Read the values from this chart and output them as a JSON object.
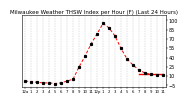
{
  "title": "Milwaukee Weather THSW Index per Hour (F) (Last 24 Hours)",
  "hours": [
    0,
    1,
    2,
    3,
    4,
    5,
    6,
    7,
    8,
    9,
    10,
    11,
    12,
    13,
    14,
    15,
    16,
    17,
    18,
    19,
    20,
    21,
    22,
    23
  ],
  "values": [
    2,
    1,
    0,
    -1,
    -1,
    -2,
    -1,
    2,
    5,
    25,
    42,
    62,
    78,
    95,
    88,
    75,
    55,
    38,
    28,
    20,
    15,
    13,
    12,
    12
  ],
  "line_color": "#ff0000",
  "marker_color": "#000000",
  "background_color": "#ffffff",
  "grid_color": "#aaaaaa",
  "ylim": [
    -8,
    108
  ],
  "xlim": [
    -0.5,
    23.5
  ],
  "yticks": [
    -5,
    10,
    25,
    40,
    55,
    70,
    85,
    100
  ],
  "xtick_positions": [
    0,
    1,
    2,
    3,
    4,
    5,
    6,
    7,
    8,
    9,
    10,
    11,
    12,
    13,
    14,
    15,
    16,
    17,
    18,
    19,
    20,
    21,
    22,
    23
  ],
  "xtick_labels": [
    "12a",
    "1",
    "2",
    "3",
    "4",
    "5",
    "6",
    "7",
    "8",
    "9",
    "10",
    "11",
    "12p",
    "1",
    "2",
    "3",
    "4",
    "5",
    "6",
    "7",
    "8",
    "9",
    "10",
    "11"
  ],
  "title_fontsize": 4.0,
  "ytick_fontsize": 3.5,
  "xtick_fontsize": 2.8,
  "line_width": 0.7,
  "marker_size": 1.3,
  "flat_line_x": [
    19,
    20,
    21,
    22,
    23
  ],
  "flat_line_y": [
    13,
    13,
    13,
    13,
    13
  ]
}
